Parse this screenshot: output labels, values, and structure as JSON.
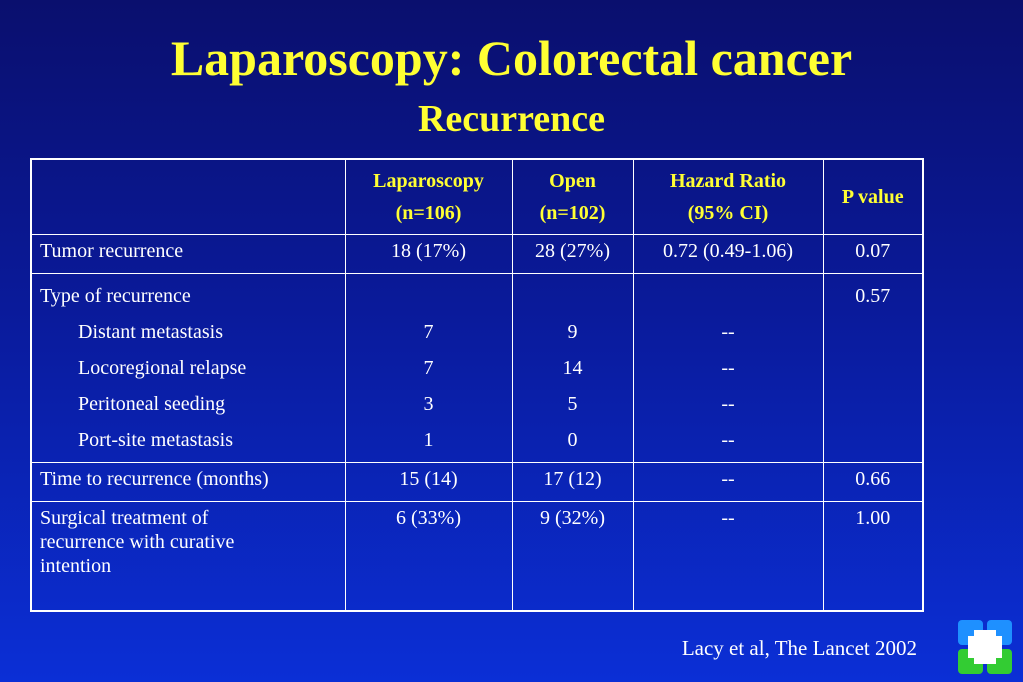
{
  "slide": {
    "title": "Laparoscopy: Colorectal cancer",
    "subtitle": "Recurrence",
    "citation": "Lacy et al, The Lancet 2002"
  },
  "table": {
    "headers": [
      {
        "line1": "",
        "line2": ""
      },
      {
        "line1": "Laparoscopy",
        "line2": "(n=106)"
      },
      {
        "line1": "Open",
        "line2": "(n=102)"
      },
      {
        "line1": "Hazard Ratio",
        "line2": "(95% CI)"
      },
      {
        "line1": "P value",
        "line2": ""
      }
    ],
    "tumor_recurrence": {
      "label": "Tumor recurrence",
      "lap": "18 (17%)",
      "open": "28 (27%)",
      "hr": "0.72 (0.49-1.06)",
      "p": "0.07"
    },
    "type_of_recurrence": {
      "label": "Type of recurrence",
      "p": "0.57",
      "items": [
        {
          "label": "Distant metastasis",
          "lap": "7",
          "open": "9",
          "hr": "--"
        },
        {
          "label": "Locoregional relapse",
          "lap": "7",
          "open": "14",
          "hr": "--"
        },
        {
          "label": "Peritoneal seeding",
          "lap": "3",
          "open": "5",
          "hr": "--"
        },
        {
          "label": "Port-site metastasis",
          "lap": "1",
          "open": "0",
          "hr": "--"
        }
      ]
    },
    "time_to_recurrence": {
      "label": "Time to recurrence (months)",
      "lap": "15 (14)",
      "open": "17 (12)",
      "hr": "--",
      "p": "0.66"
    },
    "surgical_treatment": {
      "label_lines": [
        "Surgical treatment of",
        "recurrence with curative",
        "intention"
      ],
      "lap": "6 (33%)",
      "open": "9 (32%)",
      "hr": "--",
      "p": "1.00"
    }
  },
  "colors": {
    "title": "#ffff33",
    "background_top": "#0a0f6e",
    "background_bottom": "#0b2fd6",
    "logo_blue": "#1e90ff",
    "logo_green": "#33cc33"
  },
  "logo": {
    "icon": "cross-grid-logo-icon"
  }
}
